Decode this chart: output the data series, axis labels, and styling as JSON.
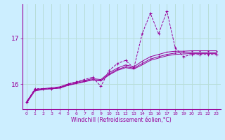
{
  "xlabel": "Windchill (Refroidissement éolien,°C)",
  "background_color": "#cceeff",
  "grid_color": "#b8ddd8",
  "line_color": "#990099",
  "x_hours": [
    0,
    1,
    2,
    3,
    4,
    5,
    6,
    7,
    8,
    9,
    10,
    11,
    12,
    13,
    14,
    15,
    16,
    17,
    18,
    19,
    20,
    21,
    22,
    23
  ],
  "y_zigzag": [
    15.6,
    15.9,
    15.9,
    15.9,
    15.92,
    16.0,
    16.05,
    16.1,
    16.15,
    15.95,
    16.3,
    16.45,
    16.52,
    16.35,
    17.1,
    17.55,
    17.1,
    17.6,
    16.8,
    16.6,
    16.65,
    16.65,
    16.65,
    16.65
  ],
  "y_smooth1": [
    15.6,
    15.88,
    15.9,
    15.92,
    15.94,
    16.0,
    16.04,
    16.08,
    16.12,
    16.1,
    16.25,
    16.35,
    16.42,
    16.38,
    16.5,
    16.6,
    16.65,
    16.7,
    16.72,
    16.72,
    16.73,
    16.73,
    16.73,
    16.73
  ],
  "y_smooth2": [
    15.62,
    15.87,
    15.89,
    15.9,
    15.92,
    15.98,
    16.02,
    16.06,
    16.1,
    16.08,
    16.22,
    16.32,
    16.38,
    16.35,
    16.45,
    16.55,
    16.6,
    16.65,
    16.68,
    16.69,
    16.7,
    16.7,
    16.7,
    16.7
  ],
  "y_smooth3": [
    15.58,
    15.85,
    15.88,
    15.9,
    15.91,
    15.97,
    16.01,
    16.05,
    16.09,
    16.07,
    16.2,
    16.3,
    16.36,
    16.33,
    16.42,
    16.52,
    16.57,
    16.62,
    16.65,
    16.66,
    16.67,
    16.67,
    16.67,
    16.67
  ],
  "ylim": [
    15.45,
    17.75
  ],
  "yticks": [
    16,
    17
  ],
  "xticks": [
    0,
    1,
    2,
    3,
    4,
    5,
    6,
    7,
    8,
    9,
    10,
    11,
    12,
    13,
    14,
    15,
    16,
    17,
    18,
    19,
    20,
    21,
    22,
    23
  ],
  "xlabel_fontsize": 5.5,
  "ytick_fontsize": 6.5,
  "xtick_fontsize": 4.5
}
